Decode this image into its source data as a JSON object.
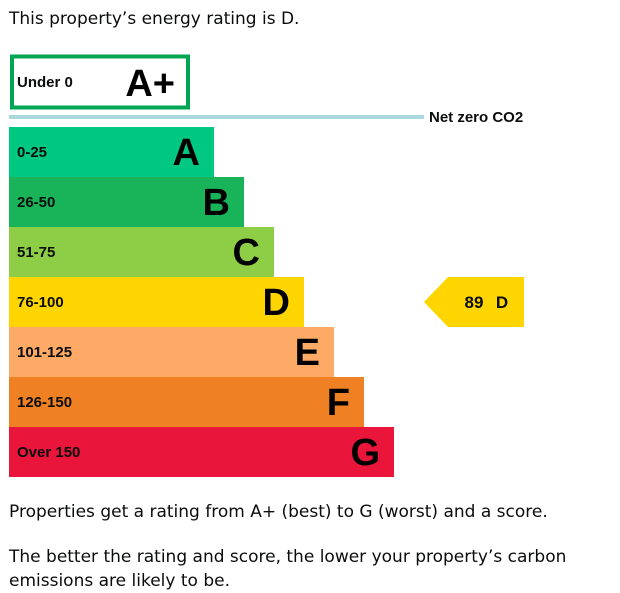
{
  "intro": "This property’s energy rating is D.",
  "footer": {
    "p1": "Properties get a rating from A+ (best) to G (worst) and a score.",
    "p2": "The better the rating and score, the lower your property’s carbon emissions are likely to be."
  },
  "chart_data": {
    "type": "bar",
    "top_band": {
      "range": "Under 0",
      "letter": "A+",
      "color": "#00a651"
    },
    "net_zero_label": "Net zero CO2",
    "net_zero_line_color": "#a9d8df",
    "bands": [
      {
        "range": "0-25",
        "letter": "A",
        "color": "#00c781"
      },
      {
        "range": "26-50",
        "letter": "B",
        "color": "#19b459"
      },
      {
        "range": "51-75",
        "letter": "C",
        "color": "#8dce46"
      },
      {
        "range": "76-100",
        "letter": "D",
        "color": "#ffd500"
      },
      {
        "range": "101-125",
        "letter": "E",
        "color": "#fcaa65"
      },
      {
        "range": "126-150",
        "letter": "F",
        "color": "#ef8023"
      },
      {
        "range": "Over 150",
        "letter": "G",
        "color": "#e9153b"
      }
    ],
    "current": {
      "score": "89",
      "letter": "D",
      "band_index": 3,
      "color": "#ffd500"
    }
  }
}
